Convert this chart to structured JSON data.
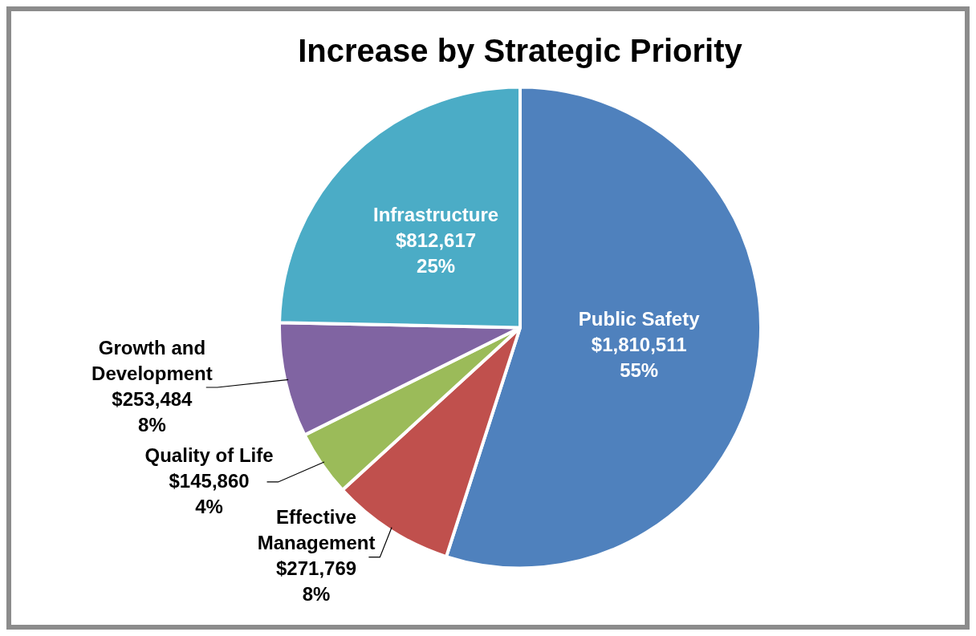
{
  "chart_data": {
    "type": "pie",
    "title": "Increase by Strategic Priority",
    "categories": [
      "Public Safety",
      "Effective Management",
      "Quality of Life",
      "Growth and Development",
      "Infrastructure"
    ],
    "values": [
      1810511,
      271769,
      145860,
      253484,
      812617
    ],
    "colors": [
      "#4f81bd",
      "#c0504d",
      "#9bbb59",
      "#8064a2",
      "#4bacc6"
    ],
    "value_labels": [
      "$1,810,511\n55%",
      "$271,769\n8%",
      "$145,860\n4%",
      "$253,484\n8%",
      "$812,617\n25%"
    ],
    "legend": false
  }
}
